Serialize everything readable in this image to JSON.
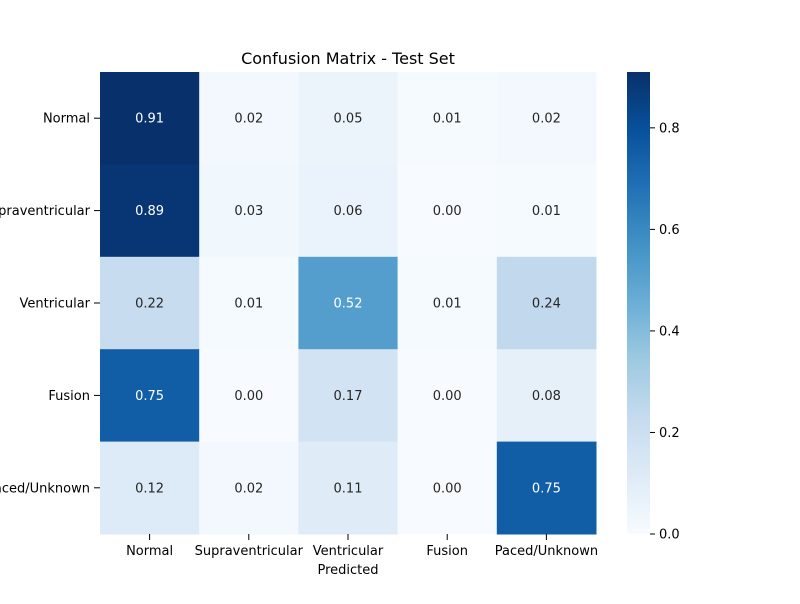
{
  "chart_data": {
    "type": "heatmap",
    "title": "Confusion Matrix - Test Set",
    "xlabel": "Predicted",
    "ylabel": "",
    "x_categories": [
      "Normal",
      "Supraventricular",
      "Ventricular",
      "Fusion",
      "Paced/Unknown"
    ],
    "y_categories": [
      "Normal",
      "Supraventricular",
      "Ventricular",
      "Fusion",
      "Paced/Unknown"
    ],
    "values": [
      [
        0.91,
        0.02,
        0.05,
        0.01,
        0.02
      ],
      [
        0.89,
        0.03,
        0.06,
        0.0,
        0.01
      ],
      [
        0.22,
        0.01,
        0.52,
        0.01,
        0.24
      ],
      [
        0.75,
        0.0,
        0.17,
        0.0,
        0.08
      ],
      [
        0.12,
        0.02,
        0.11,
        0.0,
        0.75
      ]
    ],
    "value_range": [
      0,
      0.91
    ],
    "colormap": "Blues",
    "colorbar_ticks": [
      0.0,
      0.2,
      0.4,
      0.6,
      0.8
    ],
    "colorbar_tick_labels": [
      "0.0",
      "0.2",
      "0.4",
      "0.6",
      "0.8"
    ],
    "annotation_format": "0.00"
  }
}
